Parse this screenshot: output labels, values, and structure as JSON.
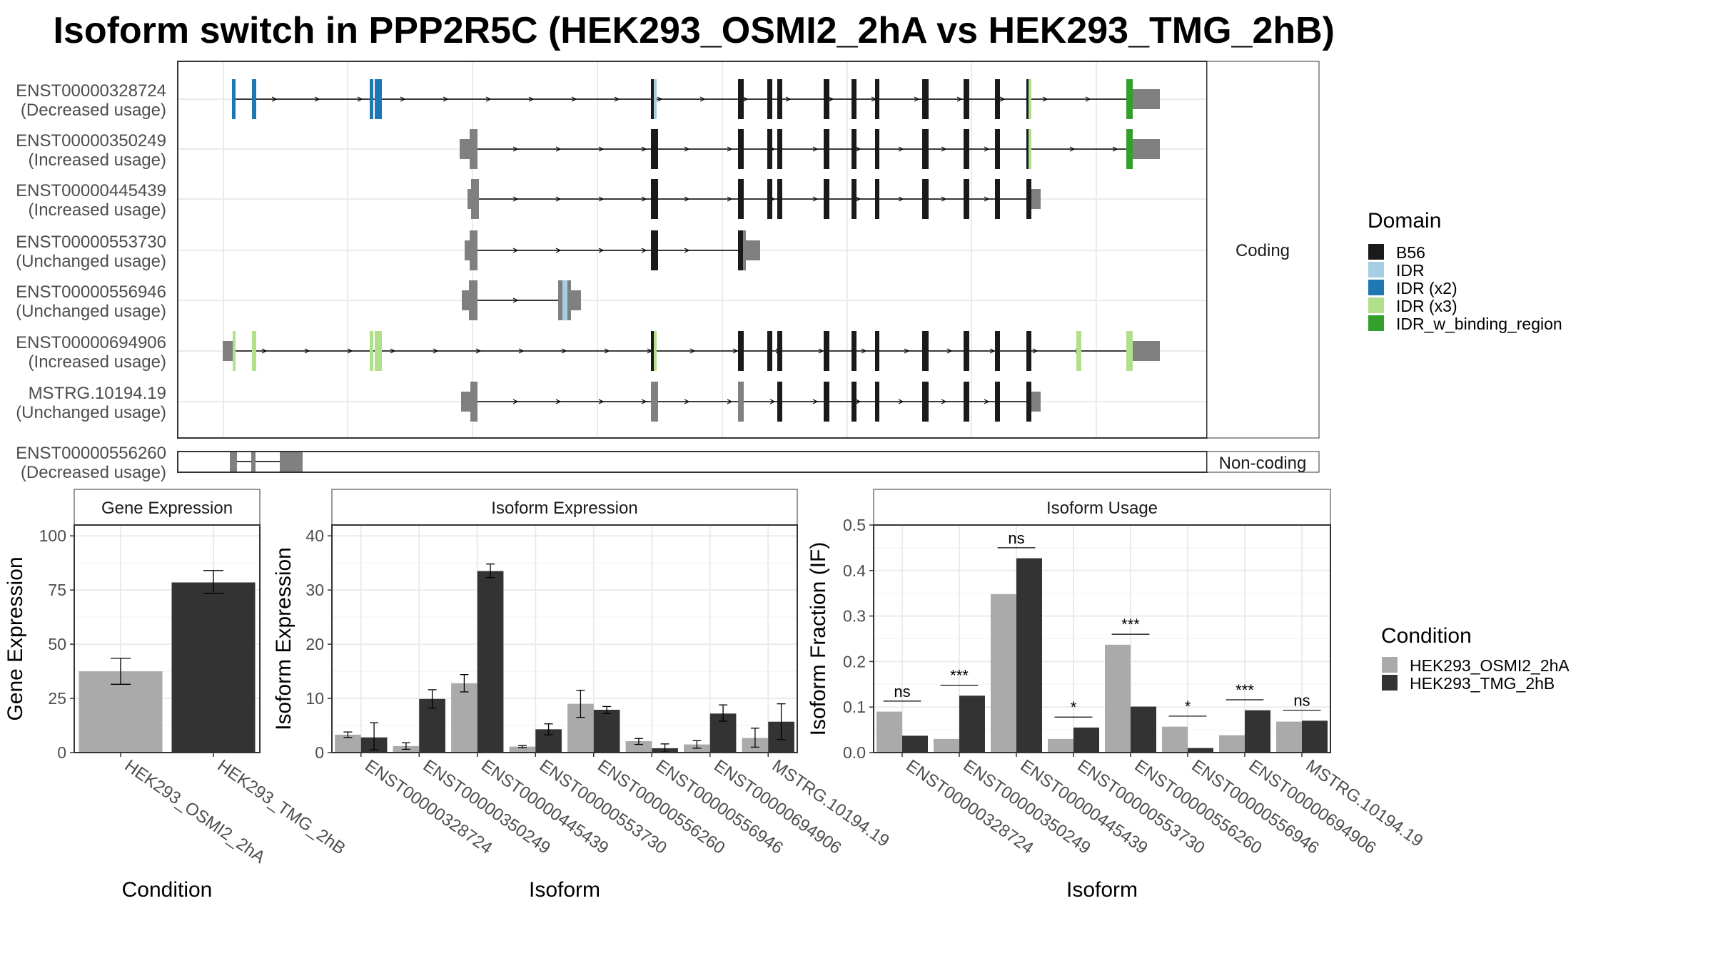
{
  "title": "Isoform switch in PPP2R5C (HEK293_OSMI2_2hA vs HEK293_TMG_2hB)",
  "colors": {
    "B56": "#1a1a1a",
    "IDR": "#a6cee3",
    "IDR (x2)": "#1f78b4",
    "IDR (x3)": "#b2df8a",
    "IDR_w_binding_region": "#33a02c",
    "utr": "#808080",
    "cond1": "#aaaaaa",
    "cond2": "#333333"
  },
  "chart_data": [
    {
      "type": "gene-structure",
      "panels": [
        "Coding",
        "Non-coding"
      ],
      "isoforms": [
        {
          "id": "ENST00000328724",
          "usage": "(Decreased usage)",
          "panel": "Coding"
        },
        {
          "id": "ENST00000350249",
          "usage": "(Increased usage)",
          "panel": "Coding"
        },
        {
          "id": "ENST00000445439",
          "usage": "(Increased usage)",
          "panel": "Coding"
        },
        {
          "id": "ENST00000553730",
          "usage": "(Unchanged usage)",
          "panel": "Coding"
        },
        {
          "id": "ENST00000556946",
          "usage": "(Unchanged usage)",
          "panel": "Coding"
        },
        {
          "id": "ENST00000694906",
          "usage": "(Increased usage)",
          "panel": "Coding"
        },
        {
          "id": "MSTRG.10194.19",
          "usage": "(Unchanged usage)",
          "panel": "Coding"
        },
        {
          "id": "ENST00000556260",
          "usage": "(Decreased usage)",
          "panel": "Non-coding"
        }
      ],
      "legend": {
        "title": "Domain",
        "items": [
          "B56",
          "IDR",
          "IDR (x2)",
          "IDR (x3)",
          "IDR_w_binding_region"
        ]
      }
    },
    {
      "type": "bar",
      "title": "Gene Expression",
      "xlabel": "Condition",
      "ylabel": "Gene Expression",
      "ylim": [
        0,
        105
      ],
      "yticks": [
        0,
        25,
        50,
        75,
        100
      ],
      "categories": [
        "HEK293_OSMI2_2hA",
        "HEK293_TMG_2hB"
      ],
      "values": [
        37.5,
        78.5
      ],
      "errors": [
        [
          31.5,
          43.5
        ],
        [
          73.5,
          84.0
        ]
      ]
    },
    {
      "type": "bar",
      "title": "Isoform Expression",
      "xlabel": "Isoform",
      "ylabel": "Isoform Expression",
      "ylim": [
        0,
        42
      ],
      "yticks": [
        0,
        10,
        20,
        30,
        40
      ],
      "categories": [
        "ENST00000328724",
        "ENST00000350249",
        "ENST00000445439",
        "ENST00000553730",
        "ENST00000556260",
        "ENST00000556946",
        "ENST00000694906",
        "MSTRG.10194.19"
      ],
      "series": [
        {
          "name": "HEK293_OSMI2_2hA",
          "values": [
            3.3,
            1.2,
            12.8,
            1.1,
            9.0,
            2.1,
            1.5,
            2.7
          ],
          "errors": [
            [
              2.8,
              3.8
            ],
            [
              0.6,
              1.8
            ],
            [
              11.2,
              14.4
            ],
            [
              0.9,
              1.3
            ],
            [
              6.5,
              11.5
            ],
            [
              1.5,
              2.6
            ],
            [
              0.8,
              2.2
            ],
            [
              1.0,
              4.5
            ]
          ]
        },
        {
          "name": "HEK293_TMG_2hB",
          "values": [
            2.8,
            9.9,
            33.5,
            4.3,
            7.9,
            0.8,
            7.2,
            5.7
          ],
          "errors": [
            [
              0.5,
              5.5
            ],
            [
              8.2,
              11.6
            ],
            [
              32.3,
              34.8
            ],
            [
              3.3,
              5.3
            ],
            [
              7.2,
              8.5
            ],
            [
              0.1,
              1.6
            ],
            [
              5.8,
              8.8
            ],
            [
              2.4,
              9.0
            ]
          ]
        }
      ]
    },
    {
      "type": "bar",
      "title": "Isoform Usage",
      "xlabel": "Isoform",
      "ylabel": "Isoform Fraction (IF)",
      "ylim": [
        0,
        0.5
      ],
      "yticks": [
        0.0,
        0.1,
        0.2,
        0.3,
        0.4,
        0.5
      ],
      "categories": [
        "ENST00000328724",
        "ENST00000350249",
        "ENST00000445439",
        "ENST00000553730",
        "ENST00000556260",
        "ENST00000556946",
        "ENST00000694906",
        "MSTRG.10194.19"
      ],
      "series": [
        {
          "name": "HEK293_OSMI2_2hA",
          "values": [
            0.09,
            0.03,
            0.348,
            0.03,
            0.237,
            0.057,
            0.038,
            0.068
          ]
        },
        {
          "name": "HEK293_TMG_2hB",
          "values": [
            0.037,
            0.125,
            0.427,
            0.055,
            0.101,
            0.01,
            0.093,
            0.07
          ]
        }
      ],
      "significance": [
        "ns",
        "***",
        "ns",
        "*",
        "***",
        "*",
        "***",
        "ns"
      ],
      "sig_y": [
        0.113,
        0.148,
        0.45,
        0.078,
        0.26,
        0.08,
        0.116,
        0.093
      ]
    }
  ],
  "condition_legend": {
    "title": "Condition",
    "items": [
      "HEK293_OSMI2_2hA",
      "HEK293_TMG_2hB"
    ]
  }
}
